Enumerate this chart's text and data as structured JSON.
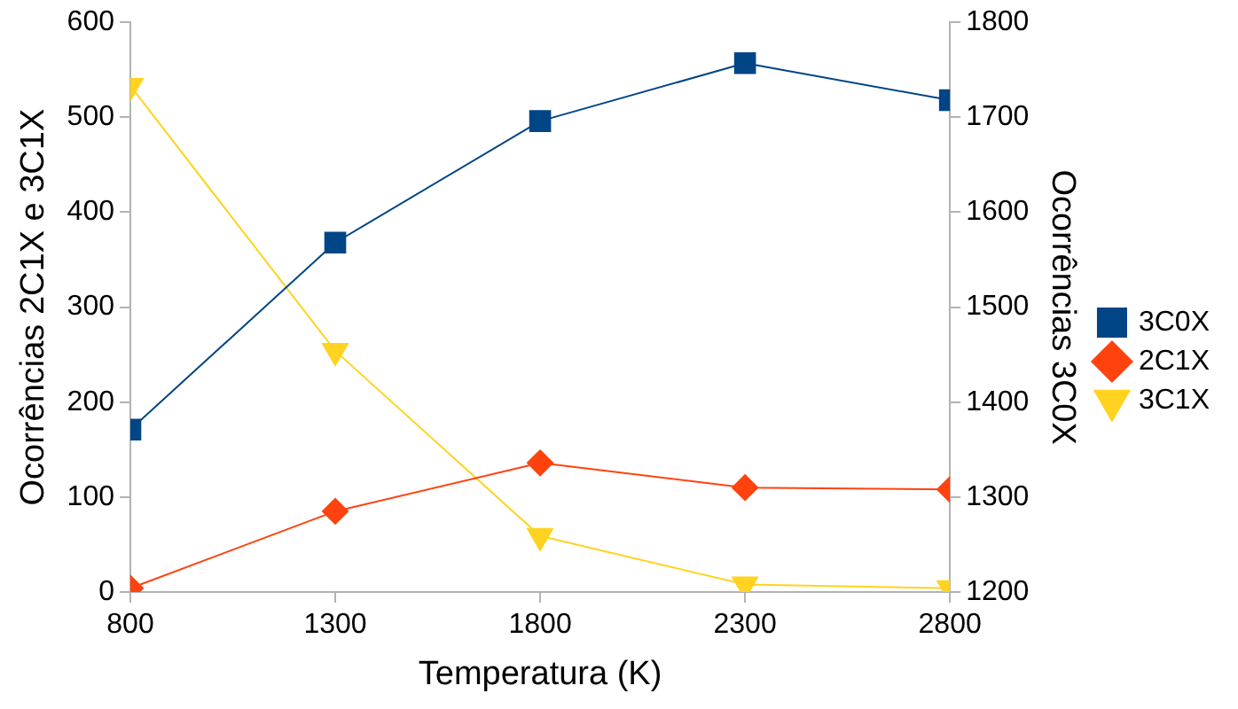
{
  "chart_data": {
    "type": "line",
    "xlabel": "Temperatura (K)",
    "ylabel": "Ocorrências 2C1X e 3C1X",
    "y2label": "Ocorrências 3C0X",
    "x": [
      800,
      1300,
      1800,
      2300,
      2800
    ],
    "xlim": [
      800,
      2800
    ],
    "xticks": [
      800,
      1300,
      1800,
      2300,
      2800
    ],
    "ylim": [
      0,
      600
    ],
    "yticks": [
      0,
      100,
      200,
      300,
      400,
      500,
      600
    ],
    "y2lim": [
      1200,
      1800
    ],
    "y2ticks": [
      1200,
      1300,
      1400,
      1500,
      1600,
      1700,
      1800
    ],
    "series": [
      {
        "name": "3C0X",
        "color": "#004586",
        "axis": "y2",
        "marker": "square",
        "values": [
          1371,
          1568,
          1696,
          1757,
          1718
        ]
      },
      {
        "name": "2C1X",
        "color": "#ff420e",
        "marker": "diamond",
        "values": [
          4,
          85,
          136,
          110,
          108
        ]
      },
      {
        "name": "3C1X",
        "color": "#ffd320",
        "marker": "triangle",
        "values": [
          533,
          254,
          59,
          8,
          4
        ]
      }
    ],
    "grid": false,
    "legend": "right",
    "line_style": "solid"
  }
}
